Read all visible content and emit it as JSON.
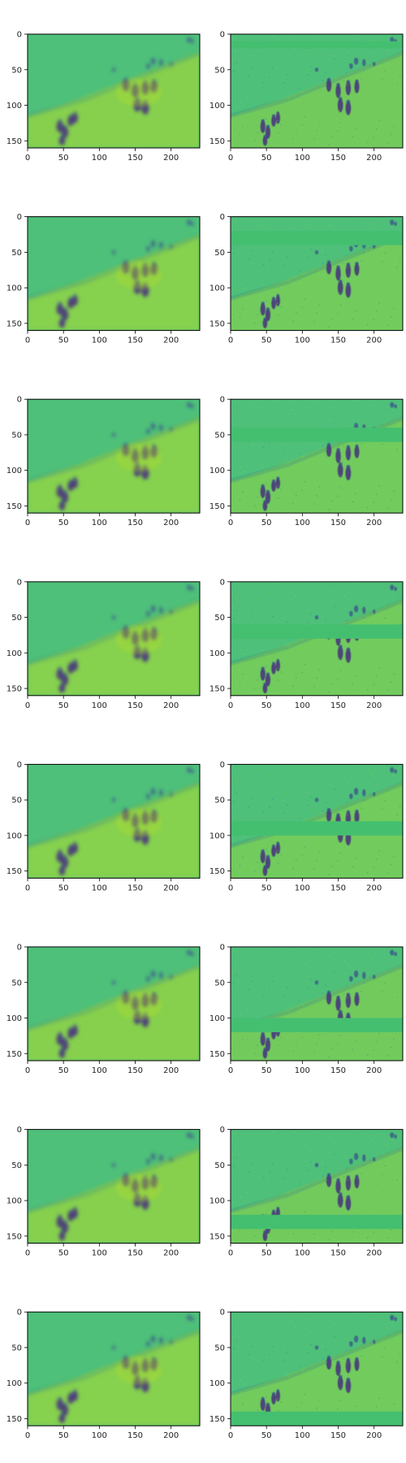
{
  "chart_data": {
    "type": "heatmap",
    "layout": {
      "rows": 8,
      "cols": 2
    },
    "colormap": "viridis",
    "image_shape": [
      160,
      240
    ],
    "xticks": [
      0,
      50,
      100,
      150,
      200
    ],
    "yticks": [
      0,
      50,
      100,
      150
    ],
    "xlim": [
      0,
      240
    ],
    "ylim": [
      160,
      0
    ],
    "panels": [
      {
        "row": 0,
        "col": 0,
        "kind": "blurred"
      },
      {
        "row": 0,
        "col": 1,
        "kind": "masked",
        "mask_rows": [
          10,
          20
        ]
      },
      {
        "row": 1,
        "col": 0,
        "kind": "blurred"
      },
      {
        "row": 1,
        "col": 1,
        "kind": "masked",
        "mask_rows": [
          20,
          40
        ]
      },
      {
        "row": 2,
        "col": 0,
        "kind": "blurred"
      },
      {
        "row": 2,
        "col": 1,
        "kind": "masked",
        "mask_rows": [
          40,
          60
        ]
      },
      {
        "row": 3,
        "col": 0,
        "kind": "blurred"
      },
      {
        "row": 3,
        "col": 1,
        "kind": "masked",
        "mask_rows": [
          60,
          80
        ]
      },
      {
        "row": 4,
        "col": 0,
        "kind": "blurred"
      },
      {
        "row": 4,
        "col": 1,
        "kind": "masked",
        "mask_rows": [
          80,
          100
        ]
      },
      {
        "row": 5,
        "col": 0,
        "kind": "blurred"
      },
      {
        "row": 5,
        "col": 1,
        "kind": "masked",
        "mask_rows": [
          100,
          120
        ]
      },
      {
        "row": 6,
        "col": 0,
        "kind": "blurred"
      },
      {
        "row": 6,
        "col": 1,
        "kind": "masked",
        "mask_rows": [
          120,
          140
        ]
      },
      {
        "row": 7,
        "col": 0,
        "kind": "blurred"
      },
      {
        "row": 7,
        "col": 1,
        "kind": "masked",
        "mask_rows": [
          140,
          160
        ]
      }
    ],
    "colors": {
      "background": "#4ec07a",
      "mask": "#44bf70",
      "bright": "#b5de2b",
      "dark": "#3b528b",
      "darkest": "#46307e",
      "edge": "#2a7a8e"
    }
  }
}
